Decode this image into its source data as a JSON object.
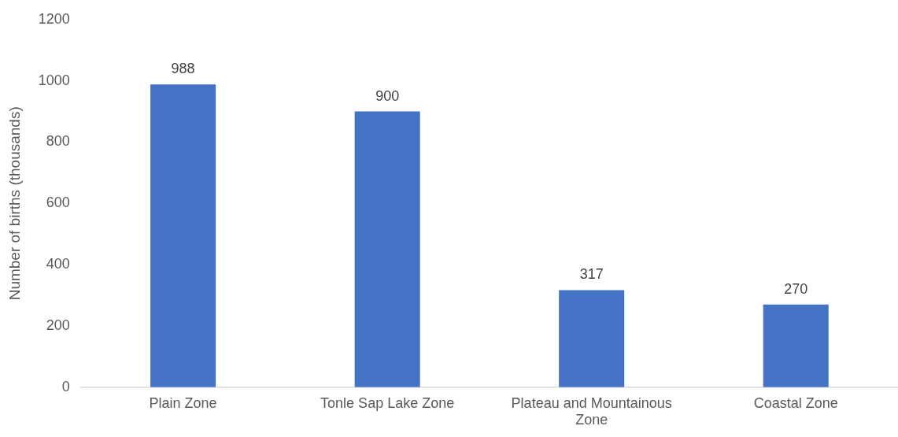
{
  "chart_data": {
    "type": "bar",
    "ylabel": "Number of births (thousands)",
    "categories": [
      "Plain Zone",
      "Tonle Sap Lake Zone",
      "Plateau and Mountainous Zone",
      "Coastal Zone"
    ],
    "values": [
      988,
      900,
      317,
      270
    ],
    "color": "#4472c4",
    "ylim": [
      0,
      1200
    ],
    "yticks": [
      0,
      200,
      400,
      600,
      800,
      1000,
      1200
    ],
    "grid": false,
    "legend": false,
    "data_labels": true
  }
}
